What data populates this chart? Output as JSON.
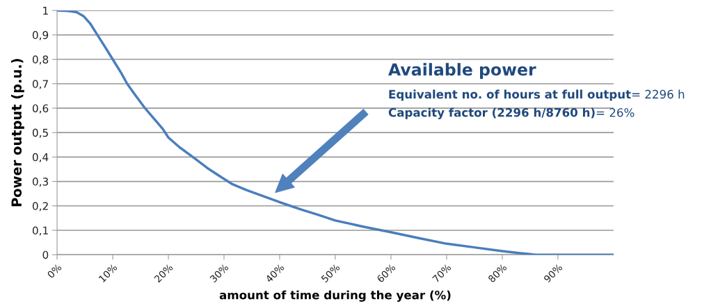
{
  "chart_data": {
    "type": "line",
    "xlabel": "amount of time during the year (%)",
    "ylabel": "Power output (p.u.)",
    "series": [
      {
        "color": "#4a7ebb",
        "x": [
          0,
          2,
          3.5,
          4.75,
          6,
          7.25,
          8.5,
          10,
          11.5,
          12.6,
          14,
          15.8,
          17.5,
          19,
          20,
          22,
          24.7,
          27,
          29,
          31.4,
          34,
          37,
          40,
          43.9,
          47,
          50,
          55,
          60,
          65,
          70,
          75,
          80,
          83,
          86,
          90,
          100
        ],
        "values": [
          1.0,
          0.998,
          0.993,
          0.977,
          0.945,
          0.9,
          0.855,
          0.8,
          0.745,
          0.7,
          0.655,
          0.6,
          0.555,
          0.515,
          0.48,
          0.44,
          0.395,
          0.355,
          0.325,
          0.29,
          0.265,
          0.24,
          0.215,
          0.185,
          0.163,
          0.14,
          0.115,
          0.092,
          0.068,
          0.045,
          0.03,
          0.015,
          0.007,
          0.0,
          0.0,
          0.0
        ]
      }
    ],
    "xlim": [
      0,
      100
    ],
    "xticks": [
      {
        "value": 0,
        "label": "0%"
      },
      {
        "value": 10,
        "label": "10%"
      },
      {
        "value": 20,
        "label": "20%"
      },
      {
        "value": 30,
        "label": "30%"
      },
      {
        "value": 40,
        "label": "40%"
      },
      {
        "value": 50,
        "label": "50%"
      },
      {
        "value": 60,
        "label": "60%"
      },
      {
        "value": 70,
        "label": "70%"
      },
      {
        "value": 80,
        "label": "80%"
      },
      {
        "value": 90,
        "label": "90%"
      }
    ],
    "ylim": [
      0,
      1
    ],
    "yticks": [
      0,
      {
        "value": 0.1,
        "label": "0,1"
      },
      {
        "value": 0.2,
        "label": "0,2"
      },
      {
        "value": 0.3,
        "label": "0,3"
      },
      {
        "value": 0.4,
        "label": "0,4"
      },
      {
        "value": 0.5,
        "label": "0,5"
      },
      {
        "value": 0.6,
        "label": "0,6"
      },
      {
        "value": 0.7,
        "label": "0,7"
      },
      {
        "value": 0.8,
        "label": "0,8"
      },
      {
        "value": 0.9,
        "label": "0,9"
      },
      1
    ],
    "grid": "y",
    "line_style": "solid",
    "marker": "none",
    "annotations": [
      "Available power",
      "Equivalent no. of hours at full output",
      "= 2296 h",
      "Capacity factor (2296 h/8760 h)",
      "= 26%"
    ]
  }
}
